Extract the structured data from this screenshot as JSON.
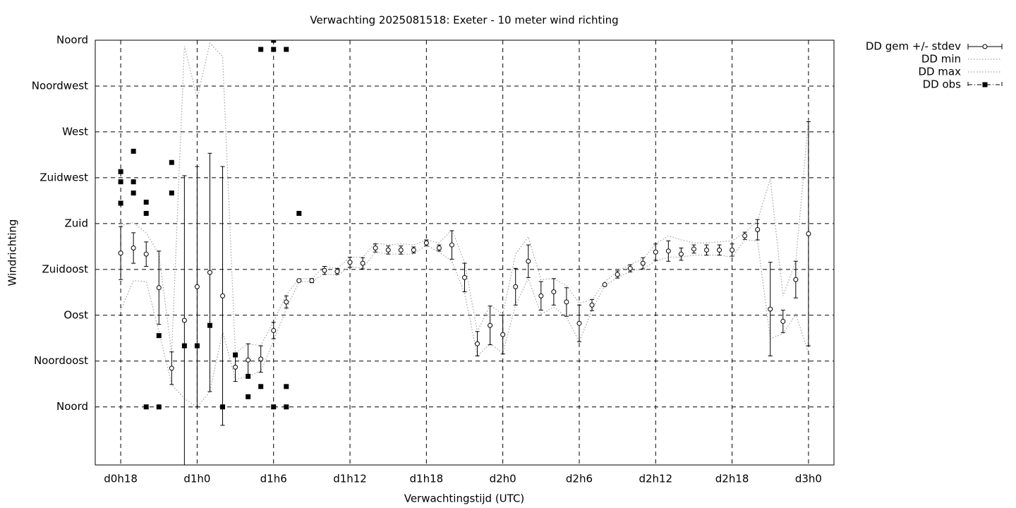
{
  "chart_data": {
    "type": "errorbar",
    "title": "Verwachting 2025081518: Exeter - 10 meter wind richting",
    "xlabel": "Verwachtingstijd (UTC)",
    "ylabel": "Windrichting",
    "x": [
      18,
      19,
      20,
      21,
      22,
      23,
      24,
      25,
      26,
      27,
      28,
      29,
      30,
      31,
      32,
      33,
      34,
      35,
      36,
      37,
      38,
      39,
      40,
      41,
      42,
      43,
      44,
      45,
      46,
      47,
      48,
      49,
      50,
      51,
      52,
      53,
      54,
      55,
      56,
      57,
      58,
      59,
      60,
      61,
      62,
      63,
      64,
      65,
      66,
      67,
      68,
      69,
      70,
      71,
      72
    ],
    "xlim": [
      16,
      74
    ],
    "xticks": [
      {
        "value": 18,
        "label": "d0h18"
      },
      {
        "value": 24,
        "label": "d1h0"
      },
      {
        "value": 30,
        "label": "d1h6"
      },
      {
        "value": 36,
        "label": "d1h12"
      },
      {
        "value": 42,
        "label": "d1h18"
      },
      {
        "value": 48,
        "label": "d2h0"
      },
      {
        "value": 54,
        "label": "d2h6"
      },
      {
        "value": 60,
        "label": "d2h12"
      },
      {
        "value": 66,
        "label": "d2h18"
      },
      {
        "value": 72,
        "label": "d3h0"
      }
    ],
    "ylim": [
      -57,
      360
    ],
    "yticks": [
      {
        "value": 0,
        "label": "Noord"
      },
      {
        "value": 45,
        "label": "Noordoost"
      },
      {
        "value": 90,
        "label": "Oost"
      },
      {
        "value": 135,
        "label": "Zuidoost"
      },
      {
        "value": 180,
        "label": "Zuid"
      },
      {
        "value": 225,
        "label": "Zuidwest"
      },
      {
        "value": 270,
        "label": "West"
      },
      {
        "value": 315,
        "label": "Noordwest"
      },
      {
        "value": 360,
        "label": "Noord"
      }
    ],
    "grid": true,
    "legend": "outside-top-right",
    "series": [
      {
        "name": "DD gem +/- stdev",
        "color": "#000000",
        "style": "errorbar",
        "values": [
          151,
          156,
          150,
          117,
          38,
          85,
          118,
          132,
          109,
          39,
          46,
          47,
          75,
          103,
          124,
          124,
          134,
          133,
          142,
          141,
          156,
          154,
          154,
          154,
          161,
          156,
          159,
          127,
          62,
          80,
          71,
          118,
          143,
          109,
          113,
          103,
          82,
          100,
          120,
          130,
          136,
          141,
          152,
          153,
          150,
          155,
          154,
          154,
          154,
          168,
          174,
          96,
          84,
          125,
          170
        ],
        "errors": [
          26,
          15,
          12,
          36,
          16,
          142,
          118,
          117,
          127,
          14,
          16,
          13,
          8,
          6,
          1,
          2,
          4,
          3,
          5,
          5.5,
          4,
          4,
          4,
          3,
          3,
          3,
          14,
          14,
          12,
          19,
          19,
          18,
          16,
          14,
          13,
          14,
          18,
          5.5,
          1,
          3.5,
          3.5,
          5.5,
          8,
          10,
          6,
          4,
          5,
          5,
          6,
          3.5,
          10,
          46,
          11,
          18,
          110
        ]
      },
      {
        "name": "DD min",
        "color": "#a0a0a0",
        "style": "dotted",
        "values": [
          95,
          124,
          123,
          74,
          22,
          8,
          0,
          15,
          74,
          27,
          30,
          35,
          65,
          96,
          123,
          123,
          131,
          129,
          138,
          136,
          152,
          150,
          150,
          150,
          159,
          152,
          143,
          112,
          50,
          62,
          53,
          100,
          126,
          91,
          98,
          88,
          64,
          95,
          119,
          127,
          133,
          136,
          143,
          147,
          147,
          149,
          149,
          149,
          147,
          164,
          163,
          67,
          72,
          91,
          53
        ]
      },
      {
        "name": "DD max",
        "color": "#a0a0a0",
        "style": "dotted",
        "values": [
          178,
          181,
          171,
          150,
          53,
          354,
          303,
          357,
          344,
          53,
          62,
          60,
          84,
          110,
          126,
          126,
          138,
          136,
          147,
          147,
          161,
          159,
          160,
          159,
          164,
          161,
          174,
          142,
          74,
          100,
          91,
          150,
          167,
          125,
          126,
          119,
          102,
          105,
          123,
          133,
          140,
          145,
          160,
          168,
          164,
          161,
          161,
          162,
          163,
          171,
          183,
          224,
          109,
          143,
          282
        ]
      },
      {
        "name": "DD obs",
        "color": "#000000",
        "style": "points",
        "x": [
          18,
          18,
          18,
          19,
          19,
          19,
          20,
          20,
          20,
          21,
          21,
          22,
          22,
          23,
          24,
          25,
          26,
          27,
          28,
          28,
          29,
          29,
          30,
          30,
          30,
          31,
          31,
          31,
          32
        ],
        "values": [
          231,
          221,
          200,
          251,
          221,
          210,
          201,
          190,
          0,
          70,
          0,
          240,
          210,
          60,
          60,
          80,
          0,
          51,
          30,
          10,
          351,
          20,
          360,
          351,
          0,
          351,
          20,
          0,
          190
        ]
      }
    ]
  }
}
